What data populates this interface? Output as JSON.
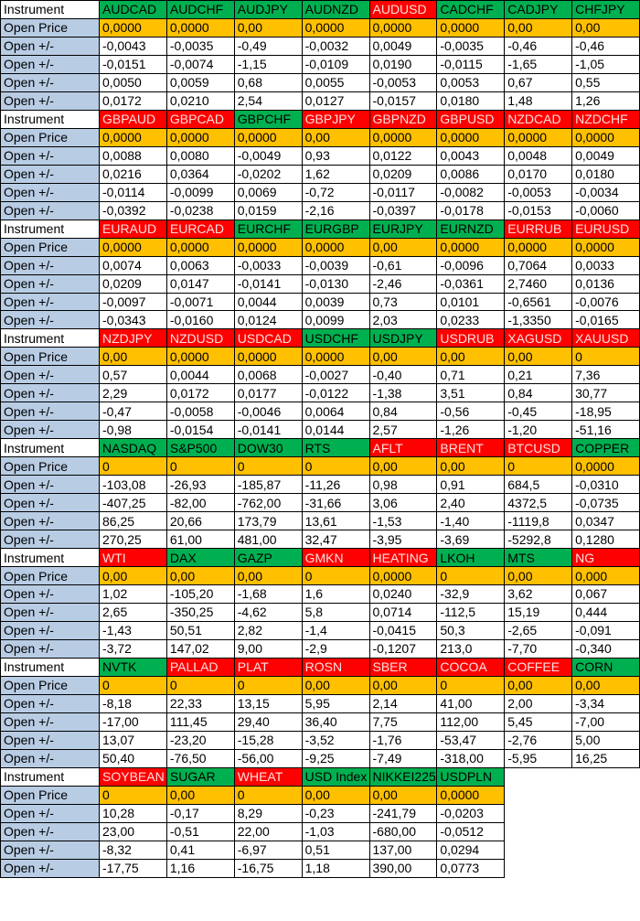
{
  "blocks": [
    {
      "labels": [
        "Instrument",
        "Open Price",
        "Open +/-",
        "Open +/-",
        "Open +/-",
        "Open +/-"
      ],
      "instruments": [
        "AUDCAD",
        "AUDCHF",
        "AUDJPY",
        "AUDNZD",
        "AUDUSD",
        "CADCHF",
        "CADJPY",
        "CHFJPY"
      ],
      "colors": [
        "#00b050",
        "#00b050",
        "#00b050",
        "#00b050",
        "#ff0000",
        "#00b050",
        "#00b050",
        "#00b050"
      ],
      "open_price": [
        "0,0000",
        "0,0000",
        "0,00",
        "0,0000",
        "0,0000",
        "0,0000",
        "0,00",
        "0,00"
      ],
      "changes": [
        [
          "-0,0043",
          "-0,0035",
          "-0,49",
          "-0,0032",
          "0,0049",
          "-0,0035",
          "-0,46",
          "-0,46"
        ],
        [
          "-0,0151",
          "-0,0074",
          "-1,15",
          "-0,0109",
          "0,0190",
          "-0,0115",
          "-1,65",
          "-1,05"
        ],
        [
          "0,0050",
          "0,0059",
          "0,68",
          "0,0055",
          "-0,0053",
          "0,0053",
          "0,67",
          "0,55"
        ],
        [
          "0,0172",
          "0,0210",
          "2,54",
          "0,0127",
          "-0,0157",
          "0,0180",
          "1,48",
          "1,26"
        ]
      ]
    },
    {
      "labels": [
        "Instrument",
        "Open Price",
        "Open +/-",
        "Open +/-",
        "Open +/-",
        "Open +/-"
      ],
      "instruments": [
        "GBPAUD",
        "GBPCAD",
        "GBPCHF",
        "GBPJPY",
        "GBPNZD",
        "GBPUSD",
        "NZDCAD",
        "NZDCHF"
      ],
      "colors": [
        "#ff0000",
        "#ff0000",
        "#00b050",
        "#ff0000",
        "#ff0000",
        "#ff0000",
        "#ff0000",
        "#ff0000"
      ],
      "open_price": [
        "0,0000",
        "0,0000",
        "0,0000",
        "0,00",
        "0,0000",
        "0,0000",
        "0,0000",
        "0,0000"
      ],
      "changes": [
        [
          "0,0088",
          "0,0080",
          "-0,0049",
          "0,93",
          "0,0122",
          "0,0043",
          "0,0048",
          "0,0049"
        ],
        [
          "0,0216",
          "0,0364",
          "-0,0202",
          "1,62",
          "0,0209",
          "0,0086",
          "0,0170",
          "0,0180"
        ],
        [
          "-0,0114",
          "-0,0099",
          "0,0069",
          "-0,72",
          "-0,0117",
          "-0,0082",
          "-0,0053",
          "-0,0034"
        ],
        [
          "-0,0392",
          "-0,0238",
          "0,0159",
          "-2,16",
          "-0,0397",
          "-0,0178",
          "-0,0153",
          "-0,0060"
        ]
      ]
    },
    {
      "labels": [
        "Instrument",
        "Open Price",
        "Open +/-",
        "Open +/-",
        "Open +/-",
        "Open +/-"
      ],
      "instruments": [
        "EURAUD",
        "EURCAD",
        "EURCHF",
        "EURGBP",
        "EURJPY",
        "EURNZD",
        "EURRUB",
        "EURUSD"
      ],
      "colors": [
        "#ff0000",
        "#ff0000",
        "#00b050",
        "#00b050",
        "#00b050",
        "#00b050",
        "#ff0000",
        "#ff0000"
      ],
      "open_price": [
        "0,0000",
        "0,0000",
        "0,0000",
        "0,0000",
        "0,00",
        "0,0000",
        "0,0000",
        "0,0000"
      ],
      "changes": [
        [
          "0,0074",
          "0,0063",
          "-0,0033",
          "-0,0039",
          "-0,61",
          "-0,0096",
          "0,7064",
          "0,0033"
        ],
        [
          "0,0209",
          "0,0147",
          "-0,0141",
          "-0,0130",
          "-2,46",
          "-0,0361",
          "2,7460",
          "0,0136"
        ],
        [
          "-0,0097",
          "-0,0071",
          "0,0044",
          "0,0039",
          "0,73",
          "0,0101",
          "-0,6561",
          "-0,0076"
        ],
        [
          "-0,0343",
          "-0,0160",
          "0,0124",
          "0,0099",
          "2,03",
          "0,0233",
          "-1,3350",
          "-0,0165"
        ]
      ]
    },
    {
      "labels": [
        "Instrument",
        "Open Price",
        "Open +/-",
        "Open +/-",
        "Open +/-",
        "Open +/-"
      ],
      "instruments": [
        "NZDJPY",
        "NZDUSD",
        "USDCAD",
        "USDCHF",
        "USDJPY",
        "USDRUB",
        "XAGUSD",
        "XAUUSD"
      ],
      "colors": [
        "#ff0000",
        "#ff0000",
        "#ff0000",
        "#00b050",
        "#00b050",
        "#ff0000",
        "#ff0000",
        "#ff0000"
      ],
      "open_price": [
        "0,00",
        "0,0000",
        "0,0000",
        "0,0000",
        "0,00",
        "0,00",
        "0,00",
        "0"
      ],
      "changes": [
        [
          "0,57",
          "0,0044",
          "0,0068",
          "-0,0027",
          "-0,40",
          "0,71",
          "0,21",
          "7,36"
        ],
        [
          "2,29",
          "0,0172",
          "0,0177",
          "-0,0122",
          "-1,38",
          "3,51",
          "0,84",
          "30,77"
        ],
        [
          "-0,47",
          "-0,0058",
          "-0,0046",
          "0,0064",
          "0,84",
          "-0,56",
          "-0,45",
          "-18,95"
        ],
        [
          "-0,98",
          "-0,0154",
          "-0,0141",
          "0,0144",
          "2,57",
          "-1,26",
          "-1,20",
          "-51,16"
        ]
      ]
    },
    {
      "labels": [
        "Instrument",
        "Open Price",
        "Open +/-",
        "Open +/-",
        "Open +/-",
        "Open +/-"
      ],
      "instruments": [
        "NASDAQ",
        "S&P500",
        "DOW30",
        "RTS",
        "AFLT",
        "BRENT",
        "BTCUSD",
        "COPPER"
      ],
      "colors": [
        "#00b050",
        "#00b050",
        "#00b050",
        "#00b050",
        "#ff0000",
        "#ff0000",
        "#ff0000",
        "#00b050"
      ],
      "open_price": [
        "0",
        "0",
        "0",
        "0",
        "0,00",
        "0,00",
        "0",
        "0,0000"
      ],
      "changes": [
        [
          "-103,08",
          "-26,93",
          "-185,87",
          "-11,26",
          "0,98",
          "0,91",
          "684,5",
          "-0,0310"
        ],
        [
          "-407,25",
          "-82,00",
          "-762,00",
          "-31,66",
          "3,06",
          "2,40",
          "4372,5",
          "-0,0735"
        ],
        [
          "86,25",
          "20,66",
          "173,79",
          "13,61",
          "-1,53",
          "-1,40",
          "-1119,8",
          "0,0347"
        ],
        [
          "270,25",
          "61,00",
          "481,00",
          "32,47",
          "-3,95",
          "-3,69",
          "-5292,8",
          "0,1280"
        ]
      ]
    },
    {
      "labels": [
        "Instrument",
        "Open Price",
        "Open +/-",
        "Open +/-",
        "Open +/-",
        "Open +/-"
      ],
      "instruments": [
        "WTI",
        "DAX",
        "GAZP",
        "GMKN",
        "HEATING",
        "LKOH",
        "MTS",
        "NG"
      ],
      "colors": [
        "#ff0000",
        "#00b050",
        "#00b050",
        "#ff0000",
        "#ff0000",
        "#00b050",
        "#00b050",
        "#ff0000"
      ],
      "open_price": [
        "0,00",
        "0,00",
        "0,00",
        "0",
        "0,0000",
        "0",
        "0,00",
        "0,000"
      ],
      "changes": [
        [
          "1,02",
          "-105,20",
          "-1,68",
          "1,6",
          "0,0240",
          "-32,9",
          "3,62",
          "0,067"
        ],
        [
          "2,65",
          "-350,25",
          "-4,62",
          "5,8",
          "0,0714",
          "-112,5",
          "15,19",
          "0,444"
        ],
        [
          "-1,43",
          "50,51",
          "2,82",
          "-1,4",
          "-0,0415",
          "50,3",
          "-2,65",
          "-0,091"
        ],
        [
          "-3,72",
          "147,02",
          "9,00",
          "-2,9",
          "-0,1207",
          "213,0",
          "-7,70",
          "-0,340"
        ]
      ]
    },
    {
      "labels": [
        "Instrument",
        "Open Price",
        "Open +/-",
        "Open +/-",
        "Open +/-",
        "Open +/-"
      ],
      "instruments": [
        "NVTK",
        "PALLAD",
        "PLAT",
        "ROSN",
        "SBER",
        "COCOA",
        "COFFEE",
        "CORN"
      ],
      "colors": [
        "#00b050",
        "#ff0000",
        "#ff0000",
        "#ff0000",
        "#ff0000",
        "#ff0000",
        "#ff0000",
        "#00b050"
      ],
      "open_price": [
        "0",
        "0",
        "0",
        "0,00",
        "0,00",
        "0",
        "0,00",
        "0,00"
      ],
      "changes": [
        [
          "-8,18",
          "22,33",
          "13,15",
          "5,95",
          "2,14",
          "41,00",
          "2,00",
          "-3,34"
        ],
        [
          "-17,00",
          "111,45",
          "29,40",
          "36,40",
          "7,75",
          "112,00",
          "5,45",
          "-7,00"
        ],
        [
          "13,07",
          "-23,20",
          "-15,28",
          "-3,52",
          "-1,76",
          "-53,47",
          "-2,76",
          "5,00"
        ],
        [
          "50,40",
          "-76,50",
          "-56,00",
          "-9,25",
          "-7,49",
          "-318,00",
          "-5,95",
          "16,25"
        ]
      ]
    },
    {
      "labels": [
        "Instrument",
        "Open Price",
        "Open +/-",
        "Open +/-",
        "Open +/-",
        "Open +/-"
      ],
      "instruments": [
        "SOYBEAN",
        "SUGAR",
        "WHEAT",
        "USD Index",
        "NIKKEI225",
        "USDPLN"
      ],
      "colors": [
        "#ff0000",
        "#00b050",
        "#ff0000",
        "#00b050",
        "#00b050",
        "#00b050"
      ],
      "open_price": [
        "0",
        "0,00",
        "0",
        "0,00",
        "0,00",
        "0,0000"
      ],
      "changes": [
        [
          "10,28",
          "-0,17",
          "8,29",
          "-0,23",
          "-241,79",
          "-0,0203"
        ],
        [
          "23,00",
          "-0,51",
          "22,00",
          "-1,03",
          "-680,00",
          "-0,0512"
        ],
        [
          "-8,32",
          "0,41",
          "-6,97",
          "0,51",
          "137,00",
          "0,0294"
        ],
        [
          "-17,75",
          "1,16",
          "-16,75",
          "1,18",
          "390,00",
          "0,0773"
        ]
      ]
    }
  ]
}
